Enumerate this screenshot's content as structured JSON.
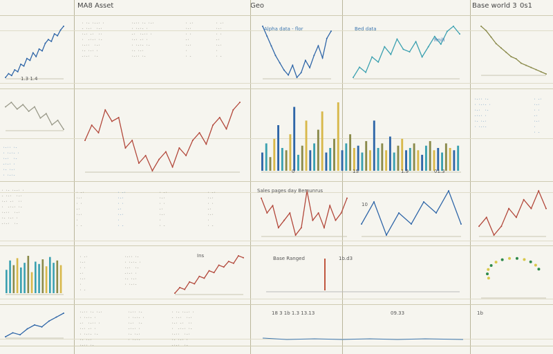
{
  "header": {
    "left": "MA8 Asset",
    "center": "Geo",
    "right": "Base world 3",
    "right2": "0s1"
  },
  "colors": {
    "blue": "#2f66a8",
    "dark_blue": "#1f4f8a",
    "teal": "#3aa0b0",
    "red": "#b2473a",
    "olive": "#8a8a4a",
    "yellow": "#d8c84a",
    "grey": "#9a9a8a"
  },
  "chart_data": [
    {
      "id": "c1",
      "type": "line",
      "color": "blue",
      "values": [
        5,
        7,
        6,
        9,
        8,
        12,
        11,
        15,
        14,
        18,
        16,
        20,
        19,
        23,
        25,
        24,
        28,
        27,
        30,
        32
      ]
    },
    {
      "id": "c2",
      "type": "line",
      "color": "blue",
      "values": [
        30,
        26,
        22,
        18,
        15,
        12,
        10,
        14,
        9,
        11,
        16,
        13,
        18,
        22,
        17,
        25,
        28
      ]
    },
    {
      "id": "c3",
      "type": "line",
      "color": "teal",
      "values": [
        10,
        14,
        12,
        18,
        16,
        22,
        19,
        25,
        21,
        20,
        24,
        18,
        22,
        26,
        23,
        28,
        30,
        27
      ]
    },
    {
      "id": "c4",
      "type": "line",
      "color": "olive",
      "values": [
        30,
        28,
        25,
        22,
        20,
        18,
        16,
        15,
        13,
        12,
        11,
        10,
        9,
        8
      ]
    },
    {
      "id": "c5",
      "type": "line",
      "color": "grey",
      "values": [
        20,
        22,
        19,
        21,
        18,
        20,
        15,
        17,
        12,
        14,
        10
      ]
    },
    {
      "id": "c6",
      "type": "line",
      "color": "red",
      "values": [
        20,
        24,
        22,
        28,
        25,
        26,
        18,
        20,
        14,
        16,
        12,
        15,
        17,
        13,
        18,
        16,
        20,
        22,
        19,
        24,
        26,
        23,
        28,
        30
      ]
    },
    {
      "id": "c7",
      "type": "bar",
      "color": "blue",
      "values": [
        8,
        12,
        6,
        14,
        20,
        10,
        9,
        16,
        28,
        7,
        11,
        22,
        9,
        12,
        18,
        26,
        8,
        10,
        14,
        30,
        9,
        12,
        16,
        10,
        11,
        8,
        13,
        9,
        22,
        10,
        12,
        9,
        15,
        8,
        11,
        14,
        9,
        10,
        12,
        9,
        7,
        11,
        13,
        9,
        10,
        8,
        12,
        10,
        9,
        11
      ]
    },
    {
      "id": "c8",
      "type": "line",
      "color": "red",
      "values": [
        14,
        12,
        13,
        10,
        11,
        12,
        9,
        10,
        15,
        11,
        12,
        10,
        13,
        11,
        12,
        14
      ]
    },
    {
      "id": "c9",
      "type": "line",
      "color": "blue",
      "values": [
        10,
        12,
        9,
        11,
        10,
        12,
        11,
        13,
        10
      ]
    },
    {
      "id": "c10",
      "type": "line",
      "color": "red",
      "values": [
        10,
        11,
        9,
        10,
        12,
        11,
        13,
        12,
        14,
        12
      ]
    },
    {
      "id": "c11",
      "type": "bar",
      "color": "teal",
      "values": [
        20,
        28,
        24,
        30,
        22,
        26,
        32,
        18,
        27,
        25,
        29,
        23,
        31,
        26,
        28,
        24
      ]
    },
    {
      "id": "c12",
      "type": "line",
      "color": "red",
      "values": [
        5,
        8,
        7,
        11,
        10,
        14,
        13,
        17,
        16,
        20,
        19,
        22,
        21,
        25,
        24
      ]
    },
    {
      "id": "c13",
      "type": "scatter",
      "color": "yellow",
      "values": [
        12,
        16,
        18,
        20,
        22,
        21,
        19,
        17,
        15,
        13,
        11,
        10
      ]
    },
    {
      "id": "c14",
      "type": "line",
      "color": "blue",
      "values": [
        8,
        10,
        9,
        12,
        14,
        13,
        16,
        18,
        20
      ]
    }
  ],
  "labels": {
    "c1_x": "1.3   1.4",
    "c2_title": "Alpha data - flor",
    "c3_title": "Bed data",
    "c3_sub": "Rnill",
    "c7_x1": "0",
    "c7_x2": "1S",
    "c7_x3": "1.9",
    "c7_x4": "01.3",
    "c8_title": "Sales pages day Bemunrus",
    "c8_y": "10",
    "c12_title": "Ins",
    "c17_title": "Base Ranged",
    "c17_sub": "1b.d3",
    "c18_title": "18 3 1b 1.3 13.13",
    "c18_right": "09.33",
    "c19_title": "1b"
  },
  "text_blocks": {
    "tb1": "· ·- ·--· ·\n- ·-·  ·-·\n·-· -·  ··\n·  -·-· ·-\n·-··  ·-·\n·- ·-· ·\n-·-·  ·-",
    "tb2": "·-·· ·- ·-·\n· ·-·- ·\n-·  ·-·· ·\n·-· -· ·\n· ·-·- ·-\n·- ·-·\n·-·· ·-",
    "tb3": "· -·\n·-·\n· ·\n-·\n·-·\n·\n· -",
    "tb4": "·-·· ·-\n· ·-·- ·\n·-·  ·-\n-·-· ·\n·- ·-·\n· ·-·-"
  }
}
